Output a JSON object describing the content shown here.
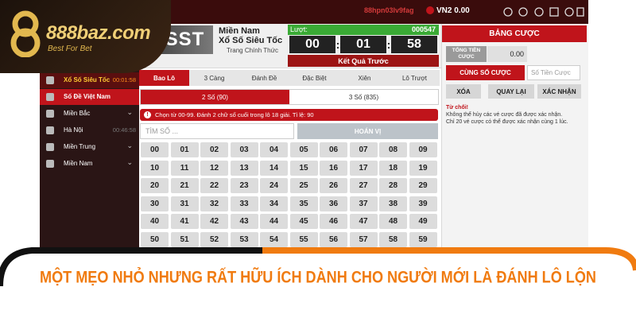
{
  "logo": {
    "brand": "888baz.com",
    "tagline": "Best For Bet"
  },
  "topbar": {
    "user": "88hpn03lv9fag",
    "balance": "VN2 0.00"
  },
  "header": {
    "brand": "XSST",
    "region": "Miền Nam",
    "game": "Xổ Số Siêu Tốc",
    "subtitle": "Trang Chính Thức"
  },
  "timer": {
    "label": "Lượt:",
    "round": "000547",
    "hours": "00",
    "minutes": "01",
    "seconds": "58",
    "separator": ":",
    "result_button": "Kết Quả Trước"
  },
  "sidebar": {
    "items": [
      {
        "label": "Xổ Số Siêu Tốc",
        "timer": "00:01:58"
      },
      {
        "label": "Số Đề Việt Nam"
      },
      {
        "label": "Miền Bắc"
      },
      {
        "label": "Hà Nội",
        "timer": "00:46:58"
      },
      {
        "label": "Miền Trung"
      },
      {
        "label": "Miền Nam"
      }
    ]
  },
  "tabs": [
    "Bao Lô",
    "3 Càng",
    "Đánh Đề",
    "Đặc Biệt",
    "Xiên",
    "Lô Trượt"
  ],
  "subtabs": [
    "2 Số (90)",
    "3 Số (835)"
  ],
  "info": "Chọn từ 00-99. Đánh 2 chữ số cuối trong lô 18 giải. Tỉ lệ: 90",
  "search": {
    "placeholder": "TÌM SỐ ...",
    "button": "HOÁN VỊ"
  },
  "numbers": [
    "00",
    "01",
    "02",
    "03",
    "04",
    "05",
    "06",
    "07",
    "08",
    "09",
    "10",
    "11",
    "12",
    "13",
    "14",
    "15",
    "16",
    "17",
    "18",
    "19",
    "20",
    "21",
    "22",
    "23",
    "24",
    "25",
    "26",
    "27",
    "28",
    "29",
    "30",
    "31",
    "32",
    "33",
    "34",
    "35",
    "36",
    "37",
    "38",
    "39",
    "40",
    "41",
    "42",
    "43",
    "44",
    "45",
    "46",
    "47",
    "48",
    "49",
    "50",
    "51",
    "52",
    "53",
    "54",
    "55",
    "56",
    "57",
    "58",
    "59"
  ],
  "bet_panel": {
    "title": "BẢNG CƯỢC",
    "total_label": "TỔNG TIỀN CƯỢC",
    "total_value": "0.00",
    "same_bet_button": "CÙNG SỐ CƯỢC",
    "amount_placeholder": "Số Tiền Cược",
    "buttons": [
      "XÓA",
      "QUAY LẠI",
      "XÁC NHẬN"
    ],
    "notice_title": "Từ chối!",
    "notice_lines": [
      "Không thể hủy các vé cược đã được xác nhận.",
      "Chỉ 20 vé cược có thể được xác nhận cùng 1 lúc."
    ]
  },
  "banner": "MỘT MẸO NHỎ NHƯNG RẤT HỮU ÍCH DÀNH CHO NGƯỜI MỚI LÀ ĐÁNH LÔ LỘN"
}
